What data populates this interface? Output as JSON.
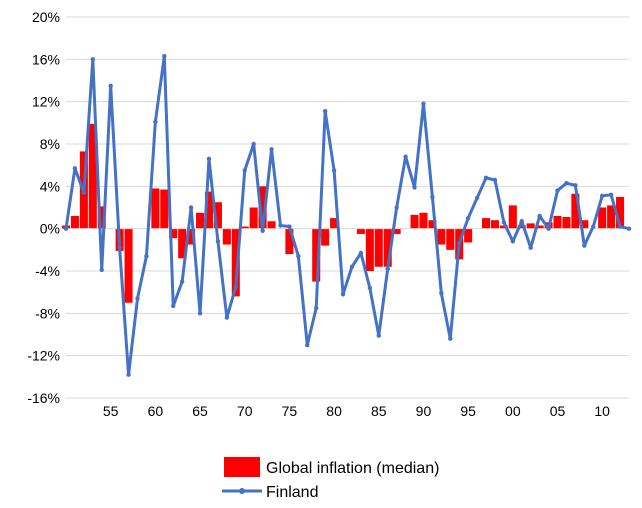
{
  "chart_data": {
    "type": "bar+line",
    "x": [
      1950,
      1951,
      1952,
      1953,
      1954,
      1955,
      1956,
      1957,
      1958,
      1959,
      1960,
      1961,
      1962,
      1963,
      1964,
      1965,
      1966,
      1967,
      1968,
      1969,
      1970,
      1971,
      1972,
      1973,
      1974,
      1975,
      1976,
      1977,
      1978,
      1979,
      1980,
      1981,
      1982,
      1983,
      1984,
      1985,
      1986,
      1987,
      1988,
      1989,
      1990,
      1991,
      1992,
      1993,
      1994,
      1995,
      1996,
      1997,
      1998,
      1999,
      2000,
      2001,
      2002,
      2003,
      2004,
      2005,
      2006,
      2007,
      2008,
      2009,
      2010,
      2011,
      2012,
      2013
    ],
    "x_tick_labels": [
      {
        "x": 1955,
        "label": "55"
      },
      {
        "x": 1960,
        "label": "60"
      },
      {
        "x": 1965,
        "label": "65"
      },
      {
        "x": 1970,
        "label": "70"
      },
      {
        "x": 1975,
        "label": "75"
      },
      {
        "x": 1980,
        "label": "80"
      },
      {
        "x": 1985,
        "label": "85"
      },
      {
        "x": 1990,
        "label": "90"
      },
      {
        "x": 1995,
        "label": "95"
      },
      {
        "x": 2000,
        "label": "00"
      },
      {
        "x": 2005,
        "label": "05"
      },
      {
        "x": 2010,
        "label": "10"
      }
    ],
    "y_ticks": [
      -16,
      -12,
      -8,
      -4,
      0,
      4,
      8,
      12,
      16,
      20
    ],
    "y_tick_labels": [
      "-16%",
      "-12%",
      "-8%",
      "-4%",
      "0%",
      "4%",
      "8%",
      "12%",
      "16%",
      "20%"
    ],
    "ylim": [
      -16,
      20
    ],
    "series": [
      {
        "name": "Global inflation (median)",
        "type": "bar",
        "color": "#ff0000",
        "values": [
          0.3,
          1.2,
          7.3,
          9.9,
          2.1,
          0.0,
          -2.1,
          -7.0,
          0.0,
          0.0,
          3.8,
          3.7,
          -0.9,
          -2.8,
          -1.5,
          1.5,
          3.5,
          2.5,
          -1.5,
          -6.4,
          0.2,
          2.0,
          4.0,
          0.7,
          0.0,
          -2.4,
          0.0,
          0.0,
          -5.0,
          -1.6,
          1.0,
          0.0,
          0.0,
          -0.5,
          -4.0,
          -3.6,
          -3.6,
          -0.5,
          0.0,
          1.3,
          1.5,
          0.8,
          -1.5,
          -2.0,
          -2.9,
          -1.3,
          0.0,
          1.0,
          0.8,
          0.3,
          2.2,
          0.3,
          0.5,
          0.3,
          0.6,
          1.2,
          1.1,
          3.3,
          0.8,
          0.0,
          2.0,
          2.2,
          3.0,
          0.0
        ]
      },
      {
        "name": "Finland",
        "type": "line",
        "color": "#4472c4",
        "values": [
          0.0,
          5.7,
          3.4,
          16.0,
          -3.9,
          13.5,
          -1.8,
          -13.8,
          -6.6,
          -2.6,
          10.1,
          16.3,
          -7.3,
          -5.0,
          2.0,
          -8.0,
          6.6,
          -1.2,
          -8.4,
          -5.5,
          5.5,
          8.0,
          -0.2,
          7.5,
          0.3,
          0.2,
          -2.6,
          -11.0,
          -7.5,
          11.1,
          5.5,
          -6.2,
          -3.6,
          -2.3,
          -5.6,
          -10.1,
          -3.8,
          2.0,
          6.8,
          3.9,
          11.8,
          3.0,
          -6.1,
          -10.4,
          -1.4,
          1.0,
          2.9,
          4.8,
          4.6,
          0.6,
          -1.2,
          0.7,
          -1.8,
          1.2,
          0.0,
          3.6,
          4.3,
          4.1,
          -1.6,
          0.2,
          3.1,
          3.2,
          0.2,
          0.0
        ]
      }
    ],
    "legend": {
      "position": "bottom",
      "entries": [
        "Global inflation (median)",
        "Finland"
      ]
    },
    "grid": {
      "horizontal": true,
      "vertical": false
    }
  }
}
